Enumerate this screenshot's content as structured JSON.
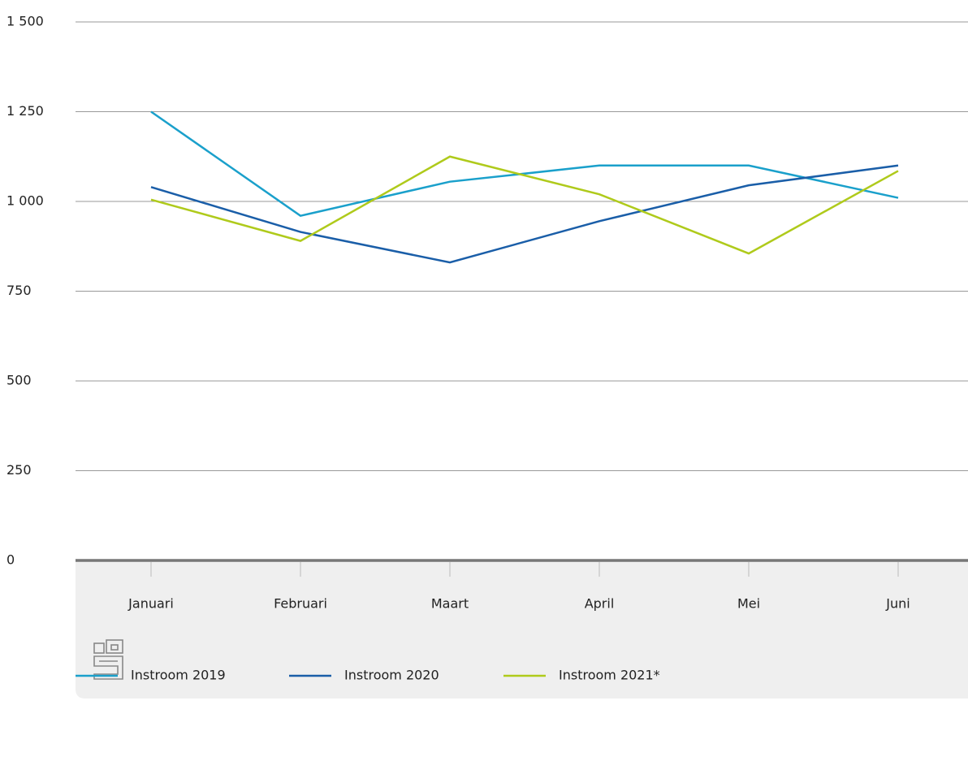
{
  "chart_data": {
    "type": "line",
    "categories": [
      "Januari",
      "Februari",
      "Maart",
      "April",
      "Mei",
      "Juni"
    ],
    "series": [
      {
        "name": "Instroom 2019",
        "color": "#1aa0cb",
        "values": [
          1250,
          960,
          1055,
          1100,
          1100,
          1010
        ]
      },
      {
        "name": "Instroom 2020",
        "color": "#1a5ea8",
        "values": [
          1040,
          915,
          830,
          945,
          1045,
          1100
        ]
      },
      {
        "name": "Instroom 2021*",
        "color": "#afca1b",
        "values": [
          1005,
          890,
          1125,
          1020,
          855,
          1085
        ]
      }
    ],
    "ylim": [
      0,
      1500
    ],
    "yticks": [
      0,
      250,
      500,
      750,
      {
        "value": 1000,
        "label": "1 000"
      },
      {
        "value": 1250,
        "label": "1 250"
      },
      {
        "value": 1500,
        "label": "1 500"
      }
    ],
    "grid": true
  }
}
